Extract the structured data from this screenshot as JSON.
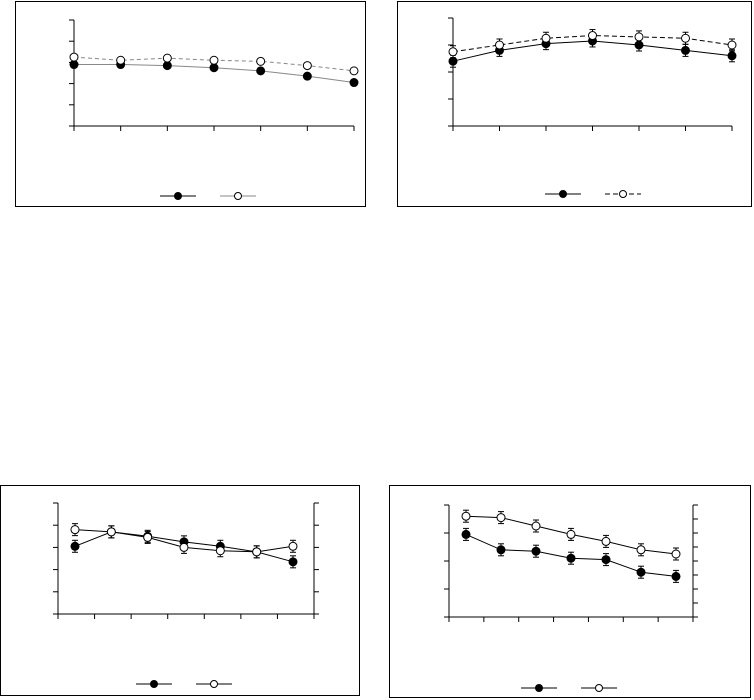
{
  "chart_data": [
    {
      "type": "line",
      "x": [
        0,
        1,
        2,
        3,
        4,
        5,
        6
      ],
      "ylim": [
        0,
        5
      ],
      "y_ticks": 5,
      "series": [
        {
          "marker": "filled",
          "line": "solid",
          "values": [
            2.9,
            2.9,
            2.85,
            2.75,
            2.6,
            2.35,
            2.05
          ]
        },
        {
          "marker": "open",
          "line": "dashed-light",
          "values": [
            3.25,
            3.1,
            3.2,
            3.1,
            3.05,
            2.85,
            2.6
          ]
        }
      ],
      "error_bars": false,
      "grid": false,
      "legend_position": "bottom-center"
    },
    {
      "type": "line",
      "x": [
        0,
        1,
        2,
        3,
        4,
        5,
        6
      ],
      "ylim": [
        0,
        4
      ],
      "y_ticks": 4,
      "series": [
        {
          "marker": "filled",
          "line": "solid",
          "values": [
            2.4,
            2.8,
            3.05,
            3.15,
            3.0,
            2.8,
            2.6
          ]
        },
        {
          "marker": "open",
          "line": "dashed",
          "values": [
            2.75,
            3.0,
            3.25,
            3.35,
            3.3,
            3.25,
            3.0
          ]
        }
      ],
      "error_bars": true,
      "grid": false,
      "legend_position": "bottom-center"
    },
    {
      "type": "line",
      "x": [
        0,
        1,
        2,
        3,
        4,
        5,
        6
      ],
      "ylim": [
        0,
        5
      ],
      "y_ticks": 5,
      "right_axis_ticks": 5,
      "series": [
        {
          "marker": "filled",
          "line": "solid",
          "values": [
            3.05,
            3.7,
            3.5,
            3.25,
            3.05,
            2.8,
            2.35
          ]
        },
        {
          "marker": "open",
          "line": "solid",
          "values": [
            3.8,
            3.7,
            3.45,
            3.0,
            2.85,
            2.8,
            3.05
          ]
        }
      ],
      "error_bars": true,
      "grid": false,
      "legend_position": "bottom-center"
    },
    {
      "type": "line",
      "x": [
        0,
        1,
        2,
        3,
        4,
        5,
        6
      ],
      "ylim": [
        0,
        4
      ],
      "y_ticks": 4,
      "right_axis_ticks": 8,
      "series": [
        {
          "marker": "filled",
          "line": "solid",
          "values": [
            2.95,
            2.4,
            2.35,
            2.1,
            2.05,
            1.6,
            1.45
          ]
        },
        {
          "marker": "open",
          "line": "solid",
          "values": [
            3.6,
            3.55,
            3.25,
            2.95,
            2.7,
            2.4,
            2.25
          ]
        }
      ],
      "error_bars": true,
      "grid": false,
      "legend_position": "bottom-center"
    }
  ]
}
